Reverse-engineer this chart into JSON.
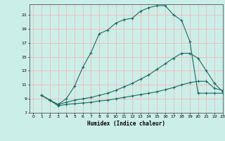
{
  "title": "",
  "xlabel": "Humidex (Indice chaleur)",
  "bg_color": "#cceee8",
  "grid_color": "#f0b8b8",
  "line_color": "#1a6b60",
  "xlim": [
    -0.5,
    23
  ],
  "ylim": [
    7,
    22.5
  ],
  "xticks": [
    0,
    1,
    2,
    3,
    4,
    5,
    6,
    7,
    8,
    9,
    10,
    11,
    12,
    13,
    14,
    15,
    16,
    17,
    18,
    19,
    20,
    21,
    22,
    23
  ],
  "yticks": [
    7,
    9,
    11,
    13,
    15,
    17,
    19,
    21
  ],
  "curve1_x": [
    1,
    2,
    3,
    4,
    5,
    6,
    7,
    8,
    9,
    10,
    11,
    12,
    13,
    14,
    15,
    16,
    17,
    18,
    19,
    20,
    21,
    22,
    23
  ],
  "curve1_y": [
    9.5,
    8.8,
    8.2,
    9.0,
    10.8,
    13.5,
    15.6,
    18.3,
    18.8,
    19.8,
    20.3,
    20.5,
    21.5,
    22.0,
    22.3,
    22.3,
    21.0,
    20.2,
    17.2,
    9.8,
    9.8,
    9.8,
    9.8
  ],
  "curve2_x": [
    1,
    2,
    3,
    4,
    5,
    6,
    7,
    8,
    9,
    10,
    11,
    12,
    13,
    14,
    15,
    16,
    17,
    18,
    19,
    20,
    21,
    22,
    23
  ],
  "curve2_y": [
    9.5,
    8.8,
    8.2,
    8.5,
    8.8,
    9.0,
    9.2,
    9.5,
    9.8,
    10.2,
    10.7,
    11.2,
    11.8,
    12.4,
    13.2,
    14.0,
    14.8,
    15.5,
    15.5,
    14.8,
    13.0,
    11.2,
    10.0
  ],
  "curve3_x": [
    1,
    2,
    3,
    4,
    5,
    6,
    7,
    8,
    9,
    10,
    11,
    12,
    13,
    14,
    15,
    16,
    17,
    18,
    19,
    20,
    21,
    22,
    23
  ],
  "curve3_y": [
    9.5,
    8.8,
    8.0,
    8.2,
    8.3,
    8.4,
    8.5,
    8.7,
    8.8,
    9.0,
    9.2,
    9.4,
    9.6,
    9.8,
    10.0,
    10.3,
    10.6,
    11.0,
    11.3,
    11.5,
    11.5,
    10.5,
    10.2
  ]
}
